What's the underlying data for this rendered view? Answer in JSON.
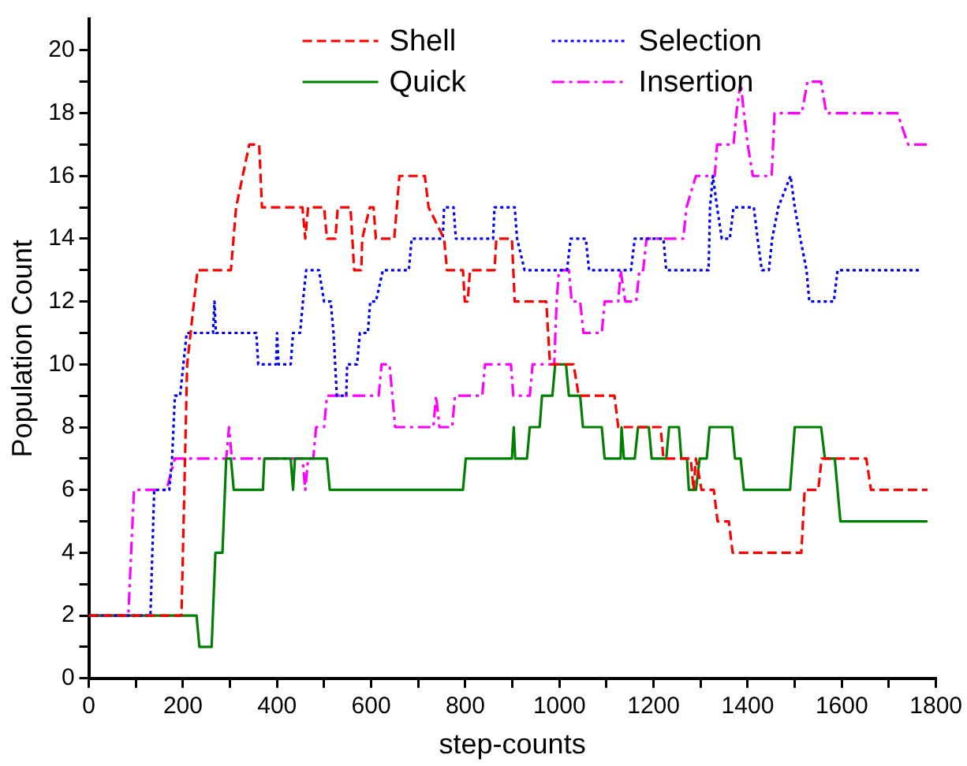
{
  "chart_data": {
    "type": "line",
    "xlabel": "step-counts",
    "ylabel": "Population Count",
    "xlim": [
      0,
      1800
    ],
    "xticks": [
      0,
      {
        "value": 100,
        "label": null
      },
      200,
      {
        "value": 300,
        "label": null
      },
      400,
      {
        "value": 500,
        "label": null
      },
      600,
      {
        "value": 700,
        "label": null
      },
      800,
      {
        "value": 900,
        "label": null
      },
      1000,
      {
        "value": 1100,
        "label": null
      },
      1200,
      {
        "value": 1300,
        "label": null
      },
      1400,
      {
        "value": 1500,
        "label": null
      },
      1600,
      {
        "value": 1700,
        "label": null
      },
      1800
    ],
    "ylim": [
      0,
      21
    ],
    "yticks": [
      0,
      {
        "value": 1,
        "label": null
      },
      2,
      {
        "value": 3,
        "label": null
      },
      4,
      {
        "value": 5,
        "label": null
      },
      6,
      {
        "value": 7,
        "label": null
      },
      8,
      {
        "value": 9,
        "label": null
      },
      10,
      {
        "value": 11,
        "label": null
      },
      12,
      {
        "value": 13,
        "label": null
      },
      14,
      {
        "value": 15,
        "label": null
      },
      16,
      {
        "value": 17,
        "label": null
      },
      18,
      {
        "value": 19,
        "label": null
      },
      20
    ],
    "legend": "top",
    "marker": "none",
    "series": [
      {
        "name": "Shell",
        "color": "#ff0000",
        "line_style": "dashed",
        "x": [
          0,
          197,
          209,
          231,
          302,
          313,
          341,
          362,
          368,
          454,
          460,
          466,
          500,
          506,
          524,
          529,
          556,
          564,
          579,
          581,
          597,
          605,
          610,
          649,
          660,
          714,
          722,
          755,
          761,
          795,
          799,
          805,
          810,
          862,
          866,
          899,
          905,
          972,
          980,
          1030,
          1041,
          1117,
          1125,
          1215,
          1221,
          1279,
          1285,
          1290,
          1302,
          1328,
          1336,
          1360,
          1368,
          1514,
          1521,
          1550,
          1557,
          1652,
          1662,
          1782
        ],
        "values": [
          2,
          2,
          10,
          13,
          13,
          15,
          17,
          17,
          15,
          15,
          14,
          15,
          15,
          14,
          14,
          15,
          15,
          13,
          13,
          14,
          15,
          15,
          14,
          14,
          16,
          16,
          15,
          14,
          13,
          13,
          12,
          12,
          13,
          13,
          14,
          14,
          12,
          12,
          10,
          10,
          9,
          9,
          8,
          8,
          7,
          7,
          6,
          7,
          6,
          6,
          5,
          5,
          4,
          4,
          6,
          6,
          7,
          7,
          6,
          6
        ]
      },
      {
        "name": "Selection",
        "color": "#0000ff",
        "line_style": "dotted",
        "x": [
          0,
          131,
          139,
          171,
          177,
          183,
          194,
          208,
          264,
          267,
          270,
          275,
          356,
          360,
          398,
          400,
          403,
          429,
          434,
          449,
          455,
          462,
          489,
          500,
          514,
          520,
          527,
          547,
          549,
          570,
          576,
          593,
          598,
          610,
          625,
          680,
          686,
          752,
          755,
          775,
          780,
          859,
          862,
          905,
          910,
          926,
          1016,
          1024,
          1056,
          1063,
          1152,
          1160,
          1221,
          1227,
          1317,
          1320,
          1326,
          1335,
          1345,
          1362,
          1370,
          1384,
          1413,
          1421,
          1430,
          1445,
          1452,
          1465,
          1491,
          1500,
          1512,
          1525,
          1531,
          1583,
          1591,
          1770
        ],
        "values": [
          2,
          2,
          6,
          6,
          7,
          9,
          9,
          11,
          11,
          12,
          11,
          11,
          11,
          10,
          10,
          11,
          10,
          10,
          11,
          11,
          12,
          13,
          13,
          12,
          12,
          11,
          9,
          9,
          10,
          10,
          11,
          11,
          12,
          12,
          13,
          13,
          14,
          14,
          15,
          15,
          14,
          14,
          15,
          15,
          14,
          13,
          13,
          14,
          14,
          13,
          13,
          14,
          14,
          13,
          13,
          15,
          16,
          15,
          14,
          14,
          15,
          15,
          15,
          14,
          13,
          13,
          14,
          15,
          16,
          15,
          14,
          13,
          12,
          12,
          13,
          13
        ]
      },
      {
        "name": "Quick",
        "color": "#008000",
        "line_style": "solid",
        "x": [
          0,
          229,
          235,
          261,
          269,
          284,
          292,
          302,
          308,
          370,
          373,
          429,
          434,
          438,
          506,
          512,
          795,
          801,
          899,
          903,
          906,
          931,
          937,
          958,
          963,
          985,
          991,
          1014,
          1020,
          1044,
          1050,
          1090,
          1096,
          1130,
          1132,
          1137,
          1160,
          1167,
          1190,
          1196,
          1227,
          1233,
          1254,
          1259,
          1271,
          1275,
          1290,
          1298,
          1313,
          1319,
          1367,
          1373,
          1385,
          1392,
          1490,
          1495,
          1500,
          1556,
          1564,
          1585,
          1591,
          1597,
          1782
        ],
        "values": [
          2,
          2,
          1,
          1,
          4,
          4,
          7,
          7,
          6,
          6,
          7,
          7,
          6,
          7,
          7,
          6,
          6,
          7,
          7,
          8,
          7,
          7,
          8,
          8,
          9,
          9,
          10,
          10,
          9,
          9,
          8,
          8,
          7,
          7,
          8,
          7,
          7,
          8,
          8,
          7,
          7,
          8,
          8,
          7,
          7,
          6,
          6,
          7,
          7,
          8,
          8,
          7,
          7,
          6,
          6,
          7,
          8,
          8,
          7,
          7,
          6,
          5,
          5
        ]
      },
      {
        "name": "Insertion",
        "color": "#ff00ff",
        "line_style": "dashdot",
        "x": [
          0,
          84,
          96,
          165,
          183,
          292,
          298,
          304,
          454,
          460,
          466,
          477,
          483,
          500,
          506,
          616,
          622,
          628,
          639,
          651,
          732,
          738,
          745,
          772,
          778,
          836,
          842,
          897,
          902,
          937,
          943,
          989,
          994,
          999,
          1020,
          1026,
          1044,
          1051,
          1090,
          1096,
          1125,
          1130,
          1140,
          1163,
          1170,
          1178,
          1185,
          1263,
          1270,
          1290,
          1330,
          1335,
          1370,
          1376,
          1385,
          1392,
          1400,
          1411,
          1451,
          1457,
          1515,
          1527,
          1556,
          1567,
          1718,
          1741,
          1782
        ],
        "values": [
          2,
          2,
          6,
          6,
          7,
          7,
          8,
          7,
          7,
          6,
          7,
          7,
          8,
          8,
          9,
          9,
          10,
          10,
          10,
          8,
          8,
          9,
          8,
          8,
          9,
          9,
          10,
          10,
          9,
          9,
          10,
          10,
          12,
          13,
          13,
          12,
          12,
          11,
          11,
          12,
          12,
          13,
          12,
          12,
          13,
          13,
          14,
          14,
          15,
          16,
          16,
          17,
          17,
          18,
          19,
          18,
          17,
          16,
          16,
          18,
          18,
          19,
          19,
          18,
          18,
          17,
          17
        ]
      }
    ]
  }
}
